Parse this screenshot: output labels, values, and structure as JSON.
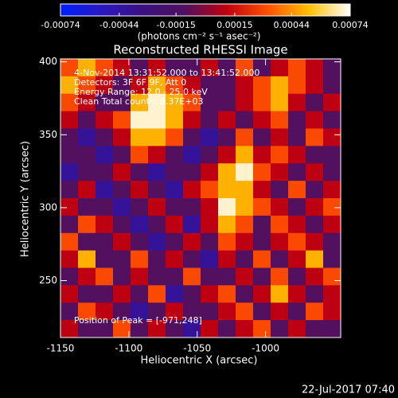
{
  "chart_data": {
    "type": "heatmap",
    "title": "Reconstructed RHESSI Image",
    "xlabel": "Heliocentric X (arcsec)",
    "ylabel": "Heliocentric Y (arcsec)",
    "colorbar_label": "(photons cm⁻² s⁻¹ asec⁻²)",
    "annotations": [
      "4-Nov-2014 13:31:52.000 to 13:41:52.000",
      "Detectors: 3F 6F 9F, Att 0",
      "Energy Range: 12.0 - 25.0 keV",
      "Clean    Total counts: 8.37E+03"
    ],
    "peak_note": "Position of Peak = [-971,248]",
    "footer": "22-Jul-2017 07:40",
    "xlim": [
      -1150,
      -945
    ],
    "ylim": [
      211,
      402
    ],
    "xticks": [
      -1150,
      -1100,
      -1050,
      -1000
    ],
    "yticks": [
      250,
      300,
      350,
      400
    ],
    "clim": [
      -0.00074,
      0.00074
    ],
    "cticks": [
      -0.00074,
      -0.00044,
      -0.00015,
      0.00015,
      0.00044,
      0.00074
    ],
    "colorscale": [
      "#0020ff",
      "#2a18c0",
      "#3a1080",
      "#501060",
      "#c00010",
      "#ff5000",
      "#ffc000",
      "#ffffff"
    ],
    "z": [
      [
        0.0003,
        0.0005,
        0.0003,
        0.0001,
        -0.0001,
        0.0001,
        -0.0001,
        -0.0001,
        0.0001,
        -0.0001,
        0.0003,
        -0.0001,
        0.0001,
        0.0003,
        0.0001,
        -0.0001
      ],
      [
        0.0005,
        0.0003,
        0.0001,
        -0.0001,
        0.0001,
        0.0005,
        0.0003,
        0.0001,
        -0.0001,
        -0.0001,
        0.0001,
        0.0003,
        0.0005,
        0.0003,
        0.0001,
        -0.0001
      ],
      [
        0.0003,
        0.0001,
        -0.0001,
        -0.0001,
        0.0005,
        0.0007,
        0.0005,
        0.0003,
        -0.0001,
        -0.0001,
        0.0001,
        0.0003,
        0.0005,
        0.0001,
        -0.0001,
        0.0001
      ],
      [
        0.0001,
        -0.0001,
        0.0001,
        0.0003,
        0.0007,
        0.0007,
        0.0005,
        0.0001,
        -0.0001,
        0.0001,
        -0.0001,
        0.0001,
        0.0003,
        -0.0001,
        0.0001,
        -0.0001
      ],
      [
        -0.0001,
        -0.0004,
        -0.0001,
        0.0001,
        0.0005,
        0.0005,
        0.0003,
        -0.0001,
        -0.0004,
        -0.0001,
        0.0003,
        -0.0001,
        0.0001,
        -0.0001,
        0.0003,
        0.0001
      ],
      [
        -0.0001,
        -0.0001,
        -0.0004,
        -0.0001,
        0.0003,
        0.0001,
        -0.0001,
        -0.0004,
        -0.0001,
        0.0001,
        0.0005,
        0.0001,
        0.0003,
        0.0001,
        -0.0001,
        -0.0001
      ],
      [
        -0.0004,
        -0.0001,
        -0.0001,
        0.0001,
        -0.0001,
        -0.0004,
        -0.0001,
        -0.0001,
        0.0001,
        0.0005,
        0.0007,
        0.0003,
        0.0001,
        -0.0001,
        0.0001,
        -0.0001
      ],
      [
        -0.0001,
        0.0001,
        -0.0004,
        -0.0001,
        0.0001,
        -0.0001,
        -0.0004,
        0.0001,
        0.0003,
        0.0005,
        0.0005,
        0.0001,
        -0.0001,
        0.0003,
        -0.0001,
        0.0001
      ],
      [
        0.0001,
        -0.0001,
        -0.0001,
        -0.0004,
        -0.0001,
        0.0001,
        -0.0001,
        -0.0001,
        0.0001,
        0.0007,
        0.0005,
        0.0003,
        0.0001,
        -0.0001,
        0.0001,
        0.0003
      ],
      [
        -0.0001,
        0.0003,
        0.0001,
        -0.0001,
        -0.0004,
        -0.0001,
        0.0001,
        -0.0004,
        0.0001,
        0.0005,
        0.0003,
        -0.0001,
        0.0003,
        0.0001,
        -0.0001,
        0.0001
      ],
      [
        0.0003,
        -0.0001,
        -0.0001,
        0.0001,
        -0.0001,
        -0.0004,
        -0.0001,
        0.0001,
        -0.0001,
        0.0003,
        0.0001,
        -0.0001,
        0.0001,
        0.0003,
        0.0001,
        -0.0001
      ],
      [
        0.0001,
        0.0005,
        -0.0001,
        -0.0001,
        0.0003,
        -0.0001,
        0.0001,
        -0.0001,
        -0.0004,
        0.0001,
        -0.0001,
        0.0003,
        -0.0001,
        0.0001,
        0.0005,
        -0.0001
      ],
      [
        -0.0001,
        0.0001,
        0.0003,
        -0.0001,
        0.0001,
        -0.0001,
        -0.0001,
        0.0003,
        -0.0001,
        -0.0001,
        0.0001,
        -0.0001,
        0.0003,
        -0.0001,
        0.0001,
        0.0003
      ],
      [
        0.0001,
        -0.0001,
        -0.0001,
        0.0001,
        -0.0001,
        0.0003,
        -0.0004,
        -0.0001,
        0.0001,
        0.0003,
        -0.0001,
        0.0001,
        0.0005,
        0.0001,
        -0.0001,
        0.0001
      ],
      [
        -0.0001,
        0.0003,
        0.0001,
        -0.0001,
        -0.0004,
        -0.0001,
        0.0001,
        -0.0001,
        -0.0001,
        0.0001,
        0.0003,
        -0.0001,
        0.0001,
        -0.0001,
        0.0003,
        0.0001
      ],
      [
        0.0001,
        -0.0001,
        -0.0001,
        0.0003,
        -0.0001,
        0.0001,
        -0.0001,
        -0.0004,
        0.0001,
        -0.0001,
        0.0001,
        0.0003,
        -0.0001,
        0.0001,
        -0.0001,
        -0.0001
      ]
    ]
  }
}
